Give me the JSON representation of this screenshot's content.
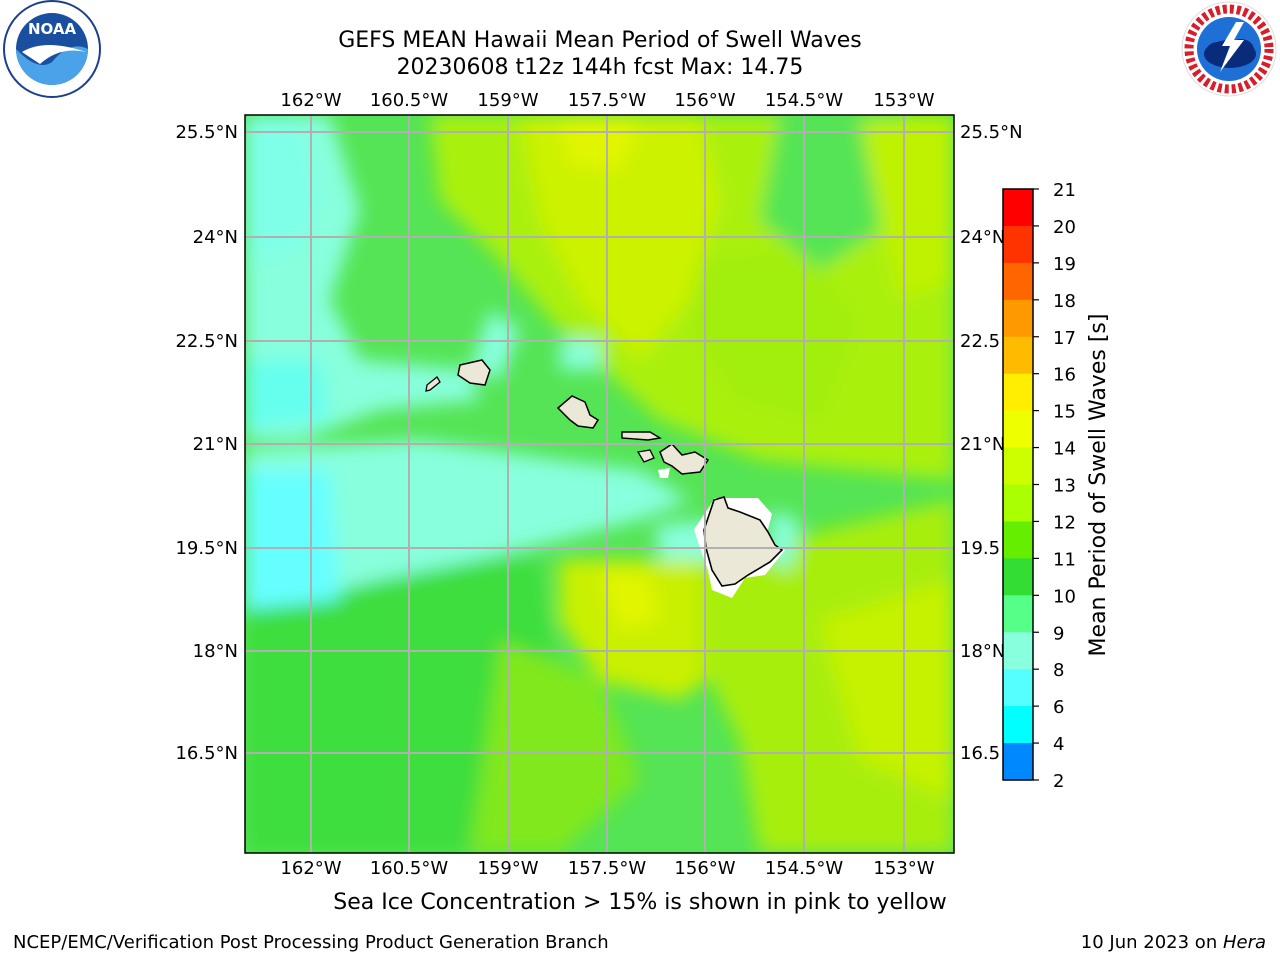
{
  "header": {
    "title_line1": "GEFS MEAN Hawaii Mean Period of Swell Waves",
    "title_line2": "20230608 t12z 144h fcst   Max: 14.75"
  },
  "logos": {
    "left": {
      "icon": "noaa-logo-icon",
      "text": "NOAA"
    },
    "right": {
      "icon": "nws-logo-icon",
      "text": "NATIONAL WEATHER SERVICE"
    }
  },
  "map": {
    "lon_ticks": [
      "162°W",
      "160.5°W",
      "159°W",
      "157.5°W",
      "156°W",
      "154.5°W",
      "153°W"
    ],
    "lat_ticks": [
      "25.5°N",
      "24°N",
      "22.5°N",
      "21°N",
      "19.5°N",
      "18°N",
      "16.5°N"
    ],
    "lat_ticks_right": [
      "25.5°N",
      "24°N",
      "22.5",
      "21°N",
      "19.5",
      "18°N",
      "16.5"
    ],
    "gridlines": true,
    "islands": [
      "Niihau",
      "Kauai",
      "Oahu",
      "Molokai",
      "Lanai",
      "Maui",
      "Kahoolawe",
      "Hawaii"
    ]
  },
  "colorbar": {
    "label": "Mean Period of Swell Waves [s]",
    "ticks": [
      "21",
      "20",
      "19",
      "18",
      "17",
      "16",
      "15",
      "14",
      "13",
      "12",
      "11",
      "10",
      "9",
      "8",
      "6",
      "4",
      "2"
    ],
    "colors": [
      "#ff0000",
      "#ff3300",
      "#ff6600",
      "#ff9900",
      "#ffbb00",
      "#ffee00",
      "#eeff00",
      "#ccff00",
      "#aaff00",
      "#66ee00",
      "#33dd33",
      "#55ff88",
      "#88ffdd",
      "#55ffff",
      "#00ffff",
      "#0088ff",
      "#0000ff"
    ]
  },
  "caption": "Sea Ice Concentration > 15% is shown in pink to yellow",
  "footer": {
    "left": "NCEP/EMC/Verification Post Processing Product Generation Branch",
    "right_prefix": "10 Jun 2023 on ",
    "right_host": "Hera"
  }
}
